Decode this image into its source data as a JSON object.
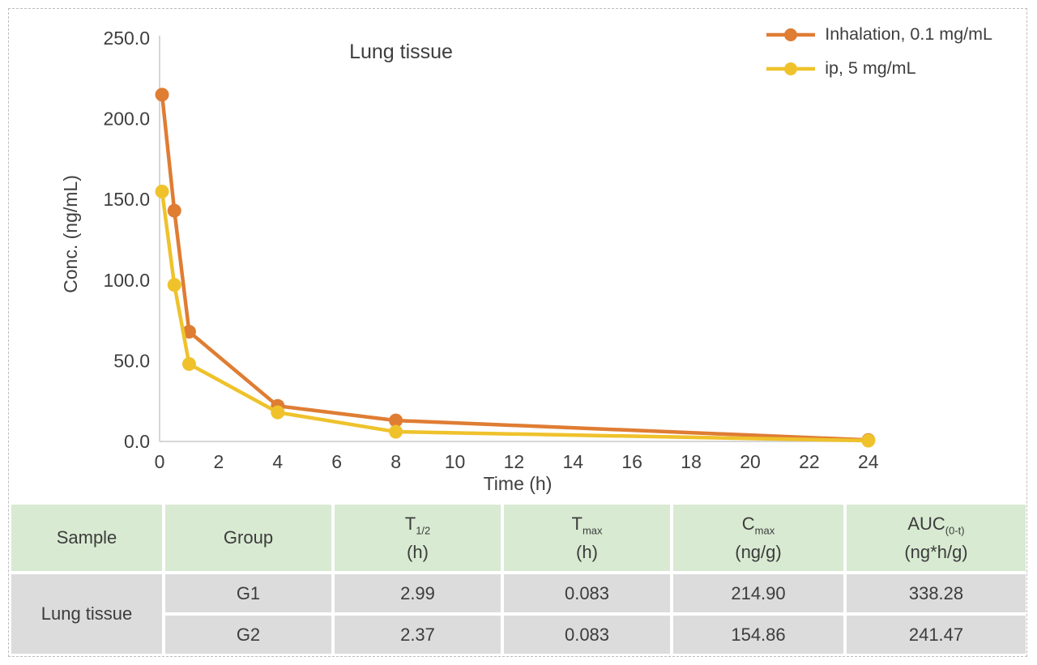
{
  "chart_data": {
    "type": "line",
    "title": "Lung tissue",
    "xlabel": "Time (h)",
    "ylabel": "Conc. (ng/mL)",
    "x": [
      0.083,
      0.5,
      1,
      4,
      8,
      24
    ],
    "series": [
      {
        "name": "Inhalation, 0.1 mg/mL",
        "color": "#df7d33",
        "values": [
          214.9,
          143,
          68,
          22,
          13,
          0.9
        ]
      },
      {
        "name": "ip, 5 mg/mL",
        "color": "#efc22c",
        "values": [
          154.86,
          97,
          48,
          18,
          6,
          0.5
        ]
      }
    ],
    "xlim": [
      0,
      24
    ],
    "ylim": [
      0,
      250
    ],
    "x_ticks": [
      "0",
      "2",
      "4",
      "6",
      "8",
      "10",
      "12",
      "14",
      "16",
      "18",
      "20",
      "22",
      "24"
    ],
    "y_ticks": [
      "0.0",
      "50.0",
      "100.0",
      "150.0",
      "200.0",
      "250.0"
    ],
    "grid": false,
    "legend_position": "top-right",
    "axis_color": "#c9c9c9"
  },
  "table": {
    "headers": [
      {
        "label": "Sample",
        "sub": "",
        "unit": ""
      },
      {
        "label": "Group",
        "sub": "",
        "unit": ""
      },
      {
        "label": "T",
        "sub": "1/2",
        "unit": "(h)"
      },
      {
        "label": "T",
        "sub": "max",
        "unit": "(h)"
      },
      {
        "label": "C",
        "sub": "max",
        "unit": "(ng/g)"
      },
      {
        "label": "AUC",
        "sub": "(0-t)",
        "unit": "(ng*h/g)"
      }
    ],
    "sample_label": "Lung tissue",
    "rows": [
      {
        "group": "G1",
        "t_half": "2.99",
        "t_max": "0.083",
        "c_max": "214.90",
        "auc": "338.28"
      },
      {
        "group": "G2",
        "t_half": "2.37",
        "t_max": "0.083",
        "c_max": "154.86",
        "auc": "241.47"
      }
    ]
  }
}
